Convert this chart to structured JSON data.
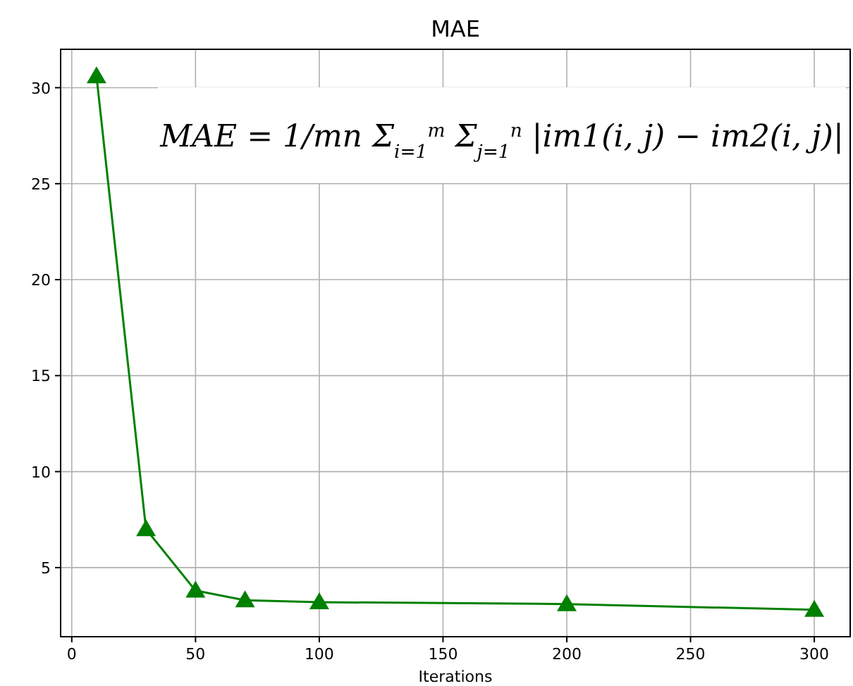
{
  "chart_data": {
    "type": "line",
    "title": "MAE",
    "xlabel": "Iterations",
    "x": [
      10,
      30,
      50,
      70,
      100,
      200,
      300
    ],
    "series": [
      {
        "color": "#008000",
        "values": [
          30.6,
          7.0,
          3.8,
          3.3,
          3.2,
          3.1,
          2.8
        ]
      }
    ],
    "xlim": [
      -4.5,
      314.5
    ],
    "xticks": [
      0,
      50,
      100,
      150,
      200,
      250,
      300
    ],
    "ylim": [
      1.4,
      32
    ],
    "yticks": [
      5,
      10,
      15,
      20,
      25,
      30
    ],
    "grid": true,
    "marker": "triangle",
    "line_style": "solid",
    "annotations": [
      "MAE = 1/mn Σ$_{i=1}$$^{m}$ Σ$_{j=1}$$^{n}$ |im1(i, j) − im2(i, j)|"
    ]
  }
}
